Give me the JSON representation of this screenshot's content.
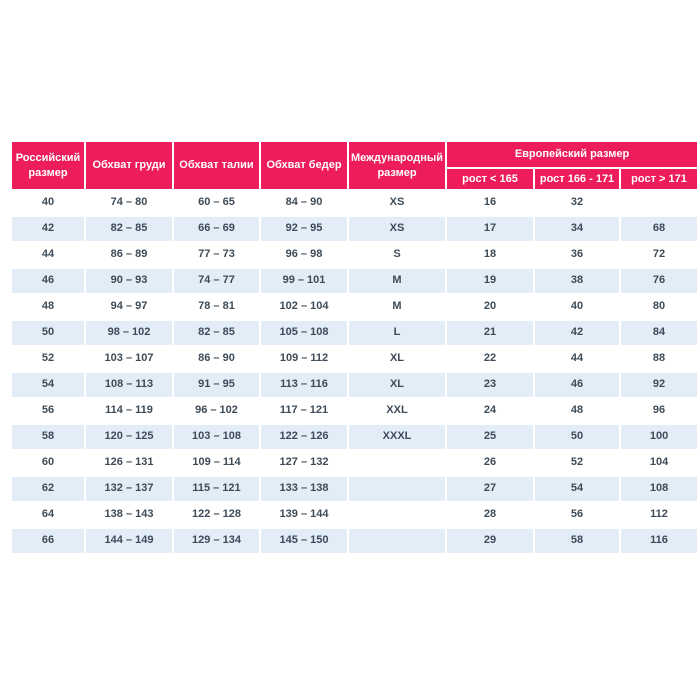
{
  "colors": {
    "header_background": "#ed1c5b",
    "header_text": "#ffffff",
    "row_alt_background": "#e2edf7",
    "row_background": "#ffffff",
    "cell_text": "#3e4b57",
    "page_background": "#ffffff"
  },
  "chart_data": {
    "type": "table",
    "headers": {
      "russian_size": "Российский размер",
      "chest": "Обхват груди",
      "waist": "Обхват талии",
      "hips": "Обхват бедер",
      "international_size": "Международный размер",
      "european_size_group": "Европейский размер",
      "european_subcolumns": [
        "рост < 165",
        "рост 166 - 171",
        "рост > 171"
      ]
    },
    "rows": [
      [
        "40",
        "74 – 80",
        "60 – 65",
        "84 – 90",
        "XS",
        "16",
        "32",
        ""
      ],
      [
        "42",
        "82 – 85",
        "66 – 69",
        "92 – 95",
        "XS",
        "17",
        "34",
        "68"
      ],
      [
        "44",
        "86 – 89",
        "77 – 73",
        "96 – 98",
        "S",
        "18",
        "36",
        "72"
      ],
      [
        "46",
        "90 – 93",
        "74 – 77",
        "99 – 101",
        "M",
        "19",
        "38",
        "76"
      ],
      [
        "48",
        "94 – 97",
        "78 – 81",
        "102 – 104",
        "M",
        "20",
        "40",
        "80"
      ],
      [
        "50",
        "98 – 102",
        "82 – 85",
        "105 – 108",
        "L",
        "21",
        "42",
        "84"
      ],
      [
        "52",
        "103 – 107",
        "86 – 90",
        "109 – 112",
        "XL",
        "22",
        "44",
        "88"
      ],
      [
        "54",
        "108 – 113",
        "91 – 95",
        "113 – 116",
        "XL",
        "23",
        "46",
        "92"
      ],
      [
        "56",
        "114 – 119",
        "96 – 102",
        "117 – 121",
        "XXL",
        "24",
        "48",
        "96"
      ],
      [
        "58",
        "120 – 125",
        "103 – 108",
        "122 – 126",
        "XXXL",
        "25",
        "50",
        "100"
      ],
      [
        "60",
        "126 – 131",
        "109 – 114",
        "127 – 132",
        "",
        "26",
        "52",
        "104"
      ],
      [
        "62",
        "132 – 137",
        "115 – 121",
        "133 – 138",
        "",
        "27",
        "54",
        "108"
      ],
      [
        "64",
        "138 – 143",
        "122 – 128",
        "139 – 144",
        "",
        "28",
        "56",
        "112"
      ],
      [
        "66",
        "144 – 149",
        "129 – 134",
        "145 – 150",
        "",
        "29",
        "58",
        "116"
      ]
    ]
  }
}
